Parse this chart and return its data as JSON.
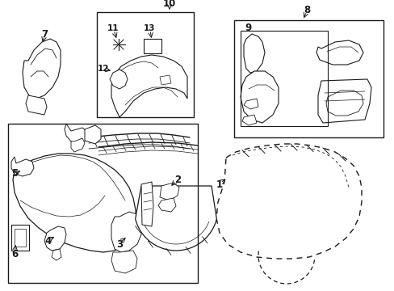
{
  "background_color": "#ffffff",
  "line_color": "#1a1a1a",
  "fig_width": 4.89,
  "fig_height": 3.6,
  "dpi": 100,
  "imgW": 489,
  "imgH": 360
}
